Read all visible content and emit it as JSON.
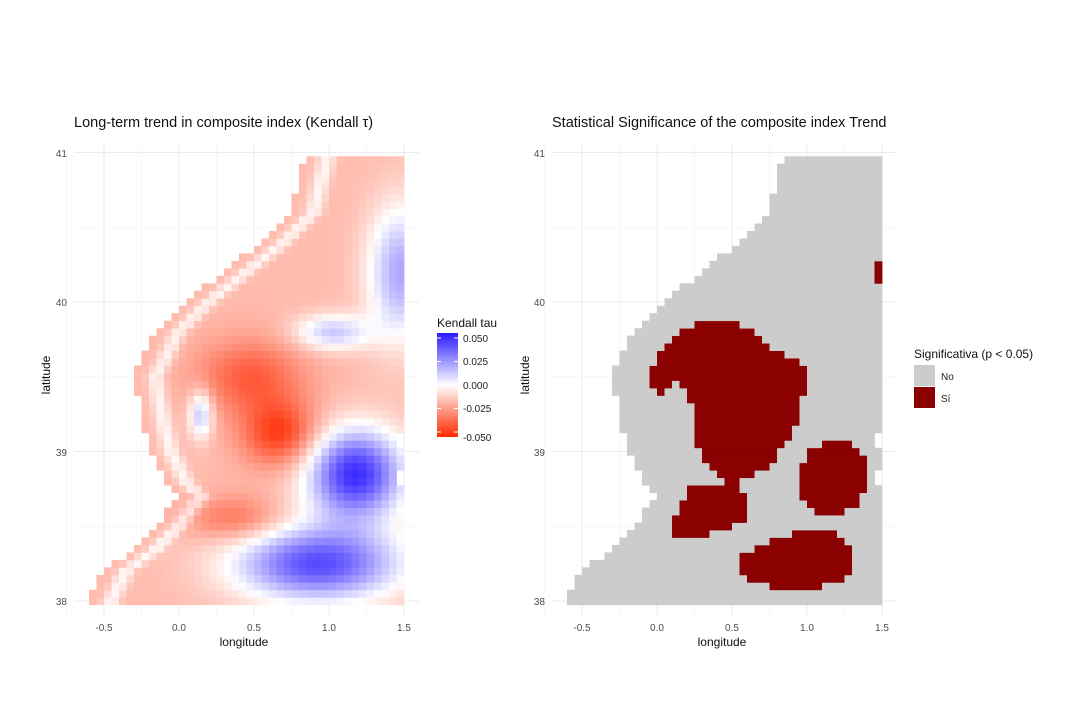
{
  "chart_data": [
    {
      "type": "heatmap",
      "title": "Long-term trend in composite index (Kendall τ)",
      "xlabel": "longitude",
      "ylabel": "latitude",
      "xlim": [
        -0.7,
        1.6
      ],
      "ylim": [
        37.9,
        41.05
      ],
      "x_ticks": [
        "-0.5",
        "0.0",
        "0.5",
        "1.0",
        "1.5"
      ],
      "y_ticks": [
        "38",
        "39",
        "40",
        "41"
      ],
      "grid": true,
      "legend": {
        "title": "Kendall tau",
        "placement": "right",
        "range": [
          -0.05,
          0.05
        ],
        "labels": [
          "0.050",
          "0.025",
          "0.000",
          "-0.025",
          "-0.050"
        ],
        "low_color": "#ff2a00",
        "mid_color": "#ffffff",
        "high_color": "#2a1aff"
      },
      "cell_size_deg": 0.05,
      "coast_boundary_lon_by_lat": [
        [
          38.0,
          -0.6
        ],
        [
          38.2,
          -0.5
        ],
        [
          38.35,
          -0.3
        ],
        [
          38.5,
          -0.15
        ],
        [
          38.7,
          0.0
        ],
        [
          38.8,
          -0.1
        ],
        [
          39.0,
          -0.2
        ],
        [
          39.2,
          -0.25
        ],
        [
          39.5,
          -0.3
        ],
        [
          39.8,
          -0.15
        ],
        [
          40.0,
          0.05
        ],
        [
          40.2,
          0.3
        ],
        [
          40.4,
          0.55
        ],
        [
          40.6,
          0.75
        ],
        [
          40.8,
          0.8
        ],
        [
          41.0,
          0.85
        ]
      ],
      "tau_field_summary": [
        {
          "region": "nearshore strip",
          "tau": -0.02
        },
        {
          "region": "central offshore",
          "tau": -0.045
        },
        {
          "region": "southeast offshore",
          "tau": 0.035
        },
        {
          "region": "northeast offshore",
          "tau": 0.015
        },
        {
          "region": "inner bay near 0.1E 39.2N",
          "tau": 0.01
        }
      ]
    },
    {
      "type": "heatmap",
      "title": "Statistical Significance of the composite index Trend",
      "xlabel": "longitude",
      "ylabel": "latitude",
      "xlim": [
        -0.7,
        1.6
      ],
      "ylim": [
        37.9,
        41.05
      ],
      "x_ticks": [
        "-0.5",
        "0.0",
        "0.5",
        "1.0",
        "1.5"
      ],
      "y_ticks": [
        "38",
        "39",
        "40",
        "41"
      ],
      "grid": true,
      "legend": {
        "title": "Significativa (p < 0.05)",
        "placement": "right",
        "categories": [
          "No",
          "Sí"
        ],
        "colors": [
          "#cccccc",
          "#8b0000"
        ]
      },
      "cell_size_deg": 0.05,
      "significant_where": "|tau| >= 0.018"
    }
  ]
}
